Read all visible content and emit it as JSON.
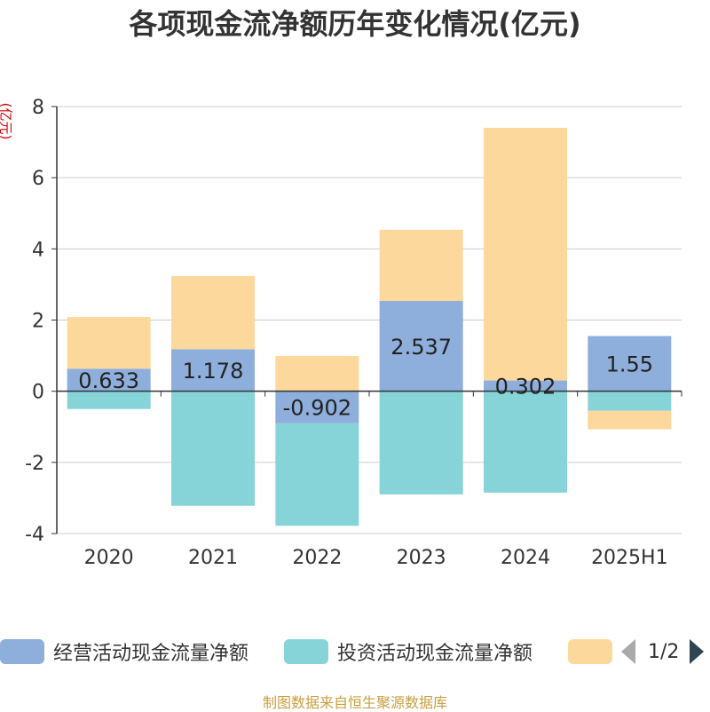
{
  "title": "各项现金流净额历年变化情况(亿元)",
  "y_unit_label": "(亿元)",
  "source_note": "制图数据来自恒生聚源数据库",
  "legend": {
    "pager_text": "1/2"
  },
  "colors": {
    "operating": "#8eaedb",
    "investing": "#86d4d8",
    "financing": "#fdd89c",
    "axis": "#333333",
    "grid": "#cccccc"
  },
  "chart_data": {
    "type": "bar",
    "stacked": true,
    "title": "各项现金流净额历年变化情况(亿元)",
    "ylabel": "(亿元)",
    "ylim": [
      -4,
      8
    ],
    "yticks": [
      -4,
      -2,
      0,
      2,
      4,
      6,
      8
    ],
    "grid": true,
    "legend_position": "bottom",
    "categories": [
      "2020",
      "2021",
      "2022",
      "2023",
      "2024",
      "2025H1"
    ],
    "series": [
      {
        "name": "经营活动现金流量净额",
        "values": [
          0.633,
          1.178,
          -0.902,
          2.537,
          0.302,
          1.55
        ],
        "labels": [
          "0.633",
          "1.178",
          "-0.902",
          "2.537",
          "0.302",
          "1.55"
        ]
      },
      {
        "name": "投资活动现金流量净额",
        "values": [
          -0.5,
          -3.22,
          -2.88,
          -2.9,
          -2.85,
          -0.55
        ]
      },
      {
        "name": "",
        "values": [
          1.45,
          2.06,
          0.99,
          2.0,
          7.1,
          -0.52
        ]
      }
    ]
  }
}
